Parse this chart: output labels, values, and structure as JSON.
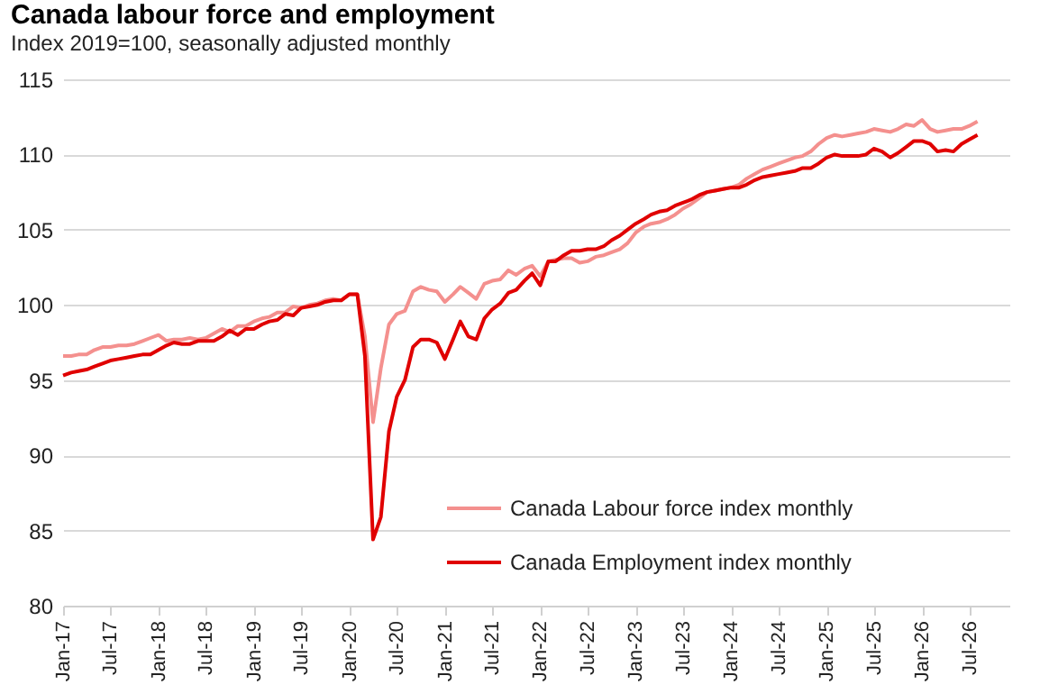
{
  "chart_data": {
    "type": "line",
    "title": "Canada labour force and employment",
    "subtitle": "Index 2019=100, seasonally adjusted monthly",
    "x": [
      "2017-01",
      "2017-02",
      "2017-03",
      "2017-04",
      "2017-05",
      "2017-06",
      "2017-07",
      "2017-08",
      "2017-09",
      "2017-10",
      "2017-11",
      "2017-12",
      "2018-01",
      "2018-02",
      "2018-03",
      "2018-04",
      "2018-05",
      "2018-06",
      "2018-07",
      "2018-08",
      "2018-09",
      "2018-10",
      "2018-11",
      "2018-12",
      "2019-01",
      "2019-02",
      "2019-03",
      "2019-04",
      "2019-05",
      "2019-06",
      "2019-07",
      "2019-08",
      "2019-09",
      "2019-10",
      "2019-11",
      "2019-12",
      "2020-01",
      "2020-02",
      "2020-03",
      "2020-04",
      "2020-05",
      "2020-06",
      "2020-07",
      "2020-08",
      "2020-09",
      "2020-10",
      "2020-11",
      "2020-12",
      "2021-01",
      "2021-02",
      "2021-03",
      "2021-04",
      "2021-05",
      "2021-06",
      "2021-07",
      "2021-08",
      "2021-09",
      "2021-10",
      "2021-11",
      "2021-12",
      "2022-01",
      "2022-02",
      "2022-03",
      "2022-04",
      "2022-05",
      "2022-06",
      "2022-07",
      "2022-08",
      "2022-09",
      "2022-10",
      "2022-11",
      "2022-12",
      "2023-01",
      "2023-02",
      "2023-03",
      "2023-04",
      "2023-05",
      "2023-06",
      "2023-07",
      "2023-08",
      "2023-09",
      "2023-10",
      "2023-11",
      "2023-12",
      "2024-01",
      "2024-02",
      "2024-03",
      "2024-04",
      "2024-05",
      "2024-06",
      "2024-07",
      "2024-08",
      "2024-09",
      "2024-10",
      "2024-11",
      "2024-12",
      "2025-01",
      "2025-02",
      "2025-03",
      "2025-04",
      "2025-05",
      "2025-06",
      "2025-07",
      "2025-08",
      "2025-09",
      "2025-10",
      "2025-11",
      "2025-12",
      "2026-01",
      "2026-02",
      "2026-03",
      "2026-04",
      "2026-05",
      "2026-06",
      "2026-07",
      "2026-08"
    ],
    "series": [
      {
        "name": "Canada Labour force index monthly",
        "color": "#f4908e",
        "values": [
          96.6,
          96.6,
          96.7,
          96.7,
          97.0,
          97.2,
          97.2,
          97.3,
          97.3,
          97.4,
          97.6,
          97.8,
          98.0,
          97.6,
          97.7,
          97.7,
          97.8,
          97.7,
          97.8,
          98.1,
          98.4,
          98.2,
          98.6,
          98.6,
          98.9,
          99.1,
          99.2,
          99.5,
          99.5,
          99.9,
          99.8,
          100.0,
          100.1,
          100.3,
          100.4,
          100.3,
          100.7,
          100.7,
          97.9,
          92.2,
          95.8,
          98.7,
          99.4,
          99.6,
          100.9,
          101.2,
          101.0,
          100.9,
          100.2,
          100.7,
          101.2,
          100.8,
          100.4,
          101.4,
          101.6,
          101.7,
          102.3,
          102.0,
          102.4,
          102.6,
          101.9,
          102.9,
          103.0,
          103.1,
          103.1,
          102.8,
          102.9,
          103.2,
          103.3,
          103.5,
          103.7,
          104.1,
          104.8,
          105.2,
          105.4,
          105.5,
          105.7,
          106.0,
          106.4,
          106.7,
          107.1,
          107.5,
          107.6,
          107.7,
          107.8,
          108.0,
          108.4,
          108.7,
          109.0,
          109.2,
          109.4,
          109.6,
          109.8,
          109.9,
          110.2,
          110.7,
          111.1,
          111.3,
          111.2,
          111.3,
          111.4,
          111.5,
          111.7,
          111.6,
          111.5,
          111.7,
          112.0,
          111.9,
          112.3,
          111.7,
          111.5,
          111.6,
          111.7,
          111.7,
          111.9,
          112.2
        ]
      },
      {
        "name": "Canada Employment index monthly",
        "color": "#e00000",
        "values": [
          95.3,
          95.5,
          95.6,
          95.7,
          95.9,
          96.1,
          96.3,
          96.4,
          96.5,
          96.6,
          96.7,
          96.7,
          97.0,
          97.3,
          97.5,
          97.4,
          97.4,
          97.6,
          97.6,
          97.6,
          97.9,
          98.3,
          98.0,
          98.4,
          98.4,
          98.7,
          98.9,
          99.0,
          99.4,
          99.3,
          99.8,
          99.9,
          100.0,
          100.2,
          100.3,
          100.3,
          100.7,
          100.7,
          96.6,
          84.4,
          85.9,
          91.6,
          93.9,
          95.0,
          97.2,
          97.7,
          97.7,
          97.5,
          96.4,
          97.7,
          98.9,
          97.9,
          97.7,
          99.1,
          99.7,
          100.1,
          100.8,
          101.0,
          101.6,
          102.1,
          101.3,
          102.9,
          102.9,
          103.3,
          103.6,
          103.6,
          103.7,
          103.7,
          103.9,
          104.3,
          104.6,
          105.0,
          105.4,
          105.7,
          106.0,
          106.2,
          106.3,
          106.6,
          106.8,
          107.0,
          107.3,
          107.5,
          107.6,
          107.7,
          107.8,
          107.8,
          108.0,
          108.3,
          108.5,
          108.6,
          108.7,
          108.8,
          108.9,
          109.1,
          109.1,
          109.4,
          109.8,
          110.0,
          109.9,
          109.9,
          109.9,
          110.0,
          110.4,
          110.2,
          109.8,
          110.1,
          110.5,
          110.9,
          110.9,
          110.7,
          110.2,
          110.3,
          110.2,
          110.7,
          111.0,
          111.3
        ]
      }
    ],
    "xlim": [
      "2017-01",
      "2026-12"
    ],
    "xticks": [
      {
        "value": "2017-01",
        "label": "Jan-17"
      },
      {
        "value": "2017-07",
        "label": "Jul-17"
      },
      {
        "value": "2018-01",
        "label": "Jan-18"
      },
      {
        "value": "2018-07",
        "label": "Jul-18"
      },
      {
        "value": "2019-01",
        "label": "Jan-19"
      },
      {
        "value": "2019-07",
        "label": "Jul-19"
      },
      {
        "value": "2020-01",
        "label": "Jan-20"
      },
      {
        "value": "2020-07",
        "label": "Jul-20"
      },
      {
        "value": "2021-01",
        "label": "Jan-21"
      },
      {
        "value": "2021-07",
        "label": "Jul-21"
      },
      {
        "value": "2022-01",
        "label": "Jan-22"
      },
      {
        "value": "2022-07",
        "label": "Jul-22"
      },
      {
        "value": "2023-01",
        "label": "Jan-23"
      },
      {
        "value": "2023-07",
        "label": "Jul-23"
      },
      {
        "value": "2024-01",
        "label": "Jan-24"
      },
      {
        "value": "2024-07",
        "label": "Jul-24"
      },
      {
        "value": "2025-01",
        "label": "Jan-25"
      },
      {
        "value": "2025-07",
        "label": "Jul-25"
      },
      {
        "value": "2026-01",
        "label": "Jan-26"
      },
      {
        "value": "2026-07",
        "label": "Jul-26"
      }
    ],
    "ylim": [
      80,
      115
    ],
    "yticks": [
      80,
      85,
      90,
      95,
      100,
      105,
      110,
      115
    ],
    "grid": "y",
    "legend": "bottom right"
  }
}
